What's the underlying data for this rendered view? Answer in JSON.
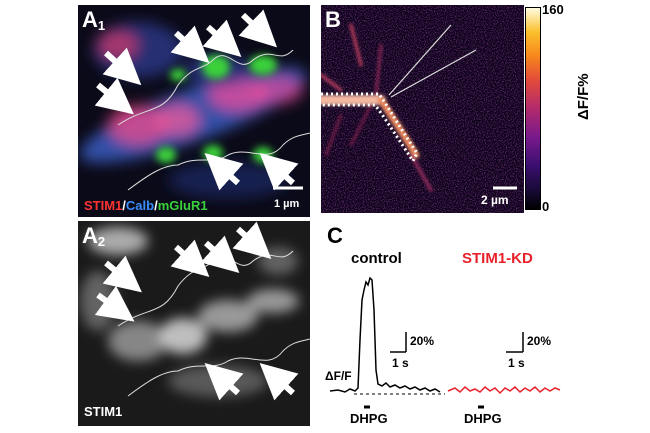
{
  "panels": {
    "a1": {
      "label": "A",
      "sub": "1",
      "legend": {
        "stim1": "STIM1",
        "sep1": "/",
        "calb": "Calb",
        "sep2": "/",
        "mglur1": "mGluR1"
      },
      "scale": "1 µm"
    },
    "a2": {
      "label": "A",
      "sub": "2",
      "caption": "STIM1"
    },
    "b": {
      "label": "B",
      "scale": "2 µm",
      "colorbar": {
        "max": "160",
        "min": "0",
        "title": "ΔF/F%"
      }
    },
    "c": {
      "label": "C",
      "control_title": "control",
      "kd_title": "STIM1-KD",
      "ylabel": "ΔF/F",
      "scale_y": "20%",
      "scale_x": "1 s",
      "stim": "DHPG"
    }
  },
  "colors": {
    "control": "#000000",
    "kd": "#e8222b",
    "stim1": "#ff3333",
    "calb": "#3a6fd8",
    "mglur1": "#3ad13a"
  }
}
